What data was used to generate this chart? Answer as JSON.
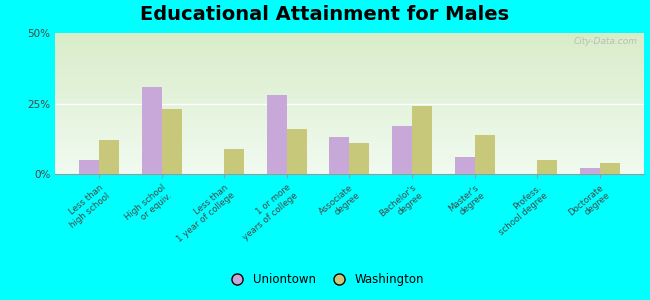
{
  "title": "Educational Attainment for Males",
  "categories": [
    "Less than\nhigh school",
    "High school\nor equiv.",
    "Less than\n1 year of college",
    "1 or more\nyears of college",
    "Associate\ndegree",
    "Bachelor's\ndegree",
    "Master's\ndegree",
    "Profess.\nschool degree",
    "Doctorate\ndegree"
  ],
  "uniontown": [
    5.0,
    31.0,
    0.0,
    28.0,
    13.0,
    17.0,
    6.0,
    0.0,
    2.0
  ],
  "washington": [
    12.0,
    23.0,
    9.0,
    16.0,
    11.0,
    24.0,
    14.0,
    5.0,
    4.0
  ],
  "uniontown_color": "#c8a8d8",
  "washington_color": "#c8c87a",
  "bg_outer": "#00ffff",
  "grad_top": "#d8ecc8",
  "grad_bottom": "#f0faf0",
  "ylim": [
    0,
    50
  ],
  "yticks": [
    0,
    25,
    50
  ],
  "ytick_labels": [
    "0%",
    "25%",
    "50%"
  ],
  "title_fontsize": 14,
  "legend_labels": [
    "Uniontown",
    "Washington"
  ],
  "watermark": "City-Data.com",
  "bar_width": 0.32
}
